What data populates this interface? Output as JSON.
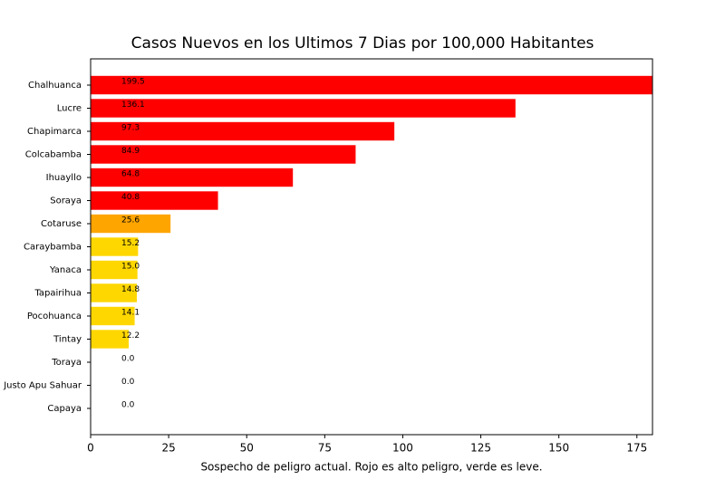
{
  "chart_data": {
    "type": "barh",
    "title": "Casos Nuevos en los Ultimos 7 Dias por 100,000 Habitantes",
    "x_label": "Sospecho de peligro actual. Rojo es alto peligro, verde es leve.",
    "categories": [
      "Chalhuanca",
      "Lucre",
      "Chapimarca",
      "Colcabamba",
      "Ihuayllo",
      "Soraya",
      "Cotaruse",
      "Caraybamba",
      "Yanaca",
      "Tapairihua",
      "Pocohuanca",
      "Tintay",
      "Toraya",
      "Justo Apu Sahuar",
      "Capaya"
    ],
    "values": [
      199.5,
      136.1,
      97.3,
      84.9,
      64.8,
      40.8,
      25.6,
      15.2,
      15.0,
      14.8,
      14.1,
      12.2,
      0.0,
      0.0,
      0.0
    ],
    "value_labels": [
      "199.5",
      "136.1",
      "97.3",
      "84.9",
      "64.8",
      "40.8",
      "25.6",
      "15.2",
      "15.0",
      "14.8",
      "14.1",
      "12.2",
      "0.0",
      "0.0",
      "0.0"
    ],
    "colors": [
      "#ff0000",
      "#ff0000",
      "#ff0000",
      "#ff0000",
      "#ff0000",
      "#ff0000",
      "#ffa500",
      "#ffd700",
      "#ffd700",
      "#ffd700",
      "#ffd700",
      "#ffd700",
      "#ffd700",
      "#ffd700",
      "#ffd700"
    ],
    "xlim": [
      0,
      180
    ],
    "xticks": [
      0,
      25,
      50,
      75,
      100,
      125,
      150,
      175
    ]
  }
}
